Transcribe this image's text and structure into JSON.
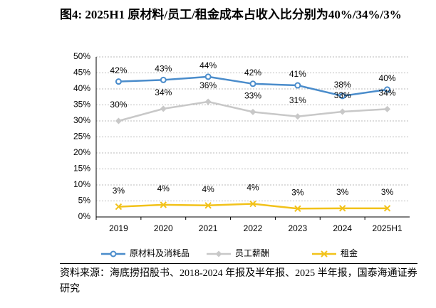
{
  "chart_data": {
    "type": "line",
    "title": "图4:  2025H1 原材料/员工/租金成本占收入比分别为40%/34%/3%",
    "source": "资料来源：海底捞招股书、2018-2024 年报及半年报、2025 半年报，国泰海通证券研究",
    "categories": [
      "2019",
      "2020",
      "2021",
      "2022",
      "2023",
      "2024",
      "2025H1"
    ],
    "series": [
      {
        "name": "原材料及消耗品",
        "color": "#4a8ccb",
        "marker": "circle",
        "values": [
          42.3,
          42.8,
          43.8,
          41.6,
          41.1,
          37.8,
          39.8
        ],
        "value_labels": [
          "42%",
          "43%",
          "44%",
          "42%",
          "41%",
          "38%",
          "40%"
        ]
      },
      {
        "name": "员工薪酬",
        "color": "#c8c8c8",
        "marker": "diamond",
        "values": [
          30.0,
          33.8,
          36.0,
          32.8,
          31.4,
          32.9,
          33.7
        ],
        "value_labels": [
          "30%",
          "34%",
          "36%",
          "33%",
          "31%",
          "33%",
          "34%"
        ]
      },
      {
        "name": "租金",
        "color": "#f2c21a",
        "marker": "x",
        "values": [
          3.2,
          3.8,
          3.6,
          4.1,
          2.6,
          2.7,
          2.7
        ],
        "value_labels": [
          "3%",
          "4%",
          "4%",
          "4%",
          "3%",
          "3%",
          "3%"
        ]
      }
    ],
    "ylim": [
      0,
      50
    ],
    "yticks": [
      {
        "value": 0,
        "label": "0%"
      },
      {
        "value": 5,
        "label": "5%"
      },
      {
        "value": 10,
        "label": "10%"
      },
      {
        "value": 15,
        "label": "15%"
      },
      {
        "value": 20,
        "label": "20%"
      },
      {
        "value": 25,
        "label": "25%"
      },
      {
        "value": 30,
        "label": "30%"
      },
      {
        "value": 35,
        "label": "35%"
      },
      {
        "value": 40,
        "label": "40%"
      },
      {
        "value": 45,
        "label": "45%"
      },
      {
        "value": 50,
        "label": "50%"
      }
    ],
    "grid": true,
    "legend": "bottom"
  }
}
